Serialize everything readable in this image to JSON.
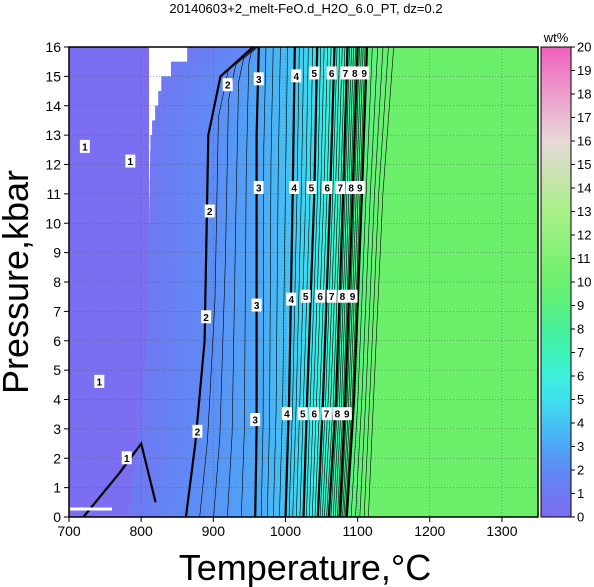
{
  "chart_data": {
    "type": "heatmap",
    "title": "20140603+2_melt-FeO.d_H2O_6.0_PT, dz=0.2",
    "xlabel": "Temperature,°C",
    "ylabel": "Pressure,kbar",
    "xlim": [
      700,
      1350
    ],
    "ylim": [
      0,
      16
    ],
    "x_ticks": [
      "700",
      "800",
      "900",
      "1000",
      "1100",
      "1200",
      "1300"
    ],
    "y_ticks": [
      "0",
      "1",
      "2",
      "3",
      "4",
      "5",
      "6",
      "7",
      "8",
      "9",
      "10",
      "11",
      "12",
      "13",
      "14",
      "15",
      "16"
    ],
    "grid": true,
    "colorbar": {
      "unit": "wt%",
      "range": [
        0,
        20
      ],
      "ticks": [
        "0",
        "1",
        "2",
        "3",
        "4",
        "5",
        "6",
        "7",
        "8",
        "9",
        "10",
        "11",
        "12",
        "13",
        "14",
        "15",
        "16",
        "17",
        "18",
        "19",
        "20"
      ],
      "position": "right"
    },
    "contour_interval": 0.2,
    "labeled_contours": [
      {
        "value": 1,
        "label": "1",
        "points": [
          [
            720,
            0
          ],
          [
            770,
            1.5
          ],
          [
            800,
            2.5
          ],
          [
            820,
            0.5
          ]
        ],
        "labels_at": [
          [
            780,
            2
          ],
          [
            742,
            4.6
          ],
          [
            722,
            12.6
          ],
          [
            785,
            12.1
          ]
        ]
      },
      {
        "value": 2,
        "label": "2",
        "points": [
          [
            862,
            0
          ],
          [
            875,
            2.5
          ],
          [
            888,
            6
          ],
          [
            893,
            13
          ],
          [
            910,
            15
          ],
          [
            955,
            16
          ]
        ],
        "labels_at": [
          [
            878,
            2.9
          ],
          [
            890,
            6.8
          ],
          [
            895,
            10.4
          ],
          [
            920,
            14.7
          ]
        ]
      },
      {
        "value": 3,
        "label": "3",
        "points": [
          [
            958,
            0
          ],
          [
            960,
            3
          ],
          [
            960,
            13
          ],
          [
            963,
            16
          ]
        ],
        "labels_at": [
          [
            958,
            3.3
          ],
          [
            960,
            7.2
          ],
          [
            963,
            11.2
          ],
          [
            963,
            14.9
          ]
        ]
      },
      {
        "value": 4,
        "label": "4",
        "points": [
          [
            1000,
            0
          ],
          [
            1005,
            4
          ],
          [
            1010,
            11
          ],
          [
            1013,
            16
          ]
        ],
        "labels_at": [
          [
            1002,
            3.5
          ],
          [
            1008,
            7.4
          ],
          [
            1012,
            11.2
          ],
          [
            1015,
            15.0
          ]
        ]
      },
      {
        "value": 5,
        "label": "5",
        "points": [
          [
            1025,
            0
          ],
          [
            1030,
            4
          ],
          [
            1040,
            11
          ],
          [
            1044,
            16
          ]
        ],
        "labels_at": [
          [
            1024,
            3.5
          ],
          [
            1028,
            7.5
          ],
          [
            1036,
            11.2
          ],
          [
            1040,
            15.1
          ]
        ]
      },
      {
        "value": 6,
        "label": "6",
        "points": [
          [
            1045,
            0
          ],
          [
            1052,
            4
          ],
          [
            1062,
            11
          ],
          [
            1068,
            16
          ]
        ],
        "labels_at": [
          [
            1040,
            3.5
          ],
          [
            1048,
            7.5
          ],
          [
            1058,
            11.2
          ],
          [
            1064,
            15.1
          ]
        ]
      },
      {
        "value": 7,
        "label": "7",
        "points": [
          [
            1060,
            0
          ],
          [
            1070,
            4
          ],
          [
            1080,
            11
          ],
          [
            1086,
            16
          ]
        ],
        "labels_at": [
          [
            1057,
            3.5
          ],
          [
            1064,
            7.5
          ],
          [
            1076,
            11.2
          ],
          [
            1083,
            15.1
          ]
        ]
      },
      {
        "value": 8,
        "label": "8",
        "points": [
          [
            1075,
            0
          ],
          [
            1083,
            4
          ],
          [
            1093,
            11
          ],
          [
            1100,
            16
          ]
        ],
        "labels_at": [
          [
            1072,
            3.5
          ],
          [
            1079,
            7.5
          ],
          [
            1091,
            11.2
          ],
          [
            1096,
            15.1
          ]
        ]
      },
      {
        "value": 9,
        "label": "9",
        "points": [
          [
            1085,
            0
          ],
          [
            1095,
            4
          ],
          [
            1106,
            11
          ],
          [
            1113,
            16
          ]
        ],
        "labels_at": [
          [
            1085,
            3.5
          ],
          [
            1093,
            7.5
          ],
          [
            1103,
            11.2
          ],
          [
            1109,
            15.1
          ]
        ]
      }
    ],
    "saturation_boundary": {
      "value": 10,
      "points": [
        [
          1115,
          0
        ],
        [
          1122,
          4
        ],
        [
          1135,
          11
        ],
        [
          1150,
          16
        ]
      ]
    },
    "color_stops": [
      {
        "value": 0,
        "color": "#7b6ef0"
      },
      {
        "value": 1,
        "color": "#6f78f2"
      },
      {
        "value": 2,
        "color": "#5f8af4"
      },
      {
        "value": 3,
        "color": "#4fa6f6"
      },
      {
        "value": 4,
        "color": "#44c4f4"
      },
      {
        "value": 5,
        "color": "#3ee0ec"
      },
      {
        "value": 6,
        "color": "#3ef0dc"
      },
      {
        "value": 7,
        "color": "#3ef2b8"
      },
      {
        "value": 8,
        "color": "#46f098"
      },
      {
        "value": 9,
        "color": "#5cf080"
      },
      {
        "value": 10,
        "color": "#6cf06c"
      },
      {
        "value": 13,
        "color": "#a8f088"
      },
      {
        "value": 16,
        "color": "#e8d8d8"
      },
      {
        "value": 20,
        "color": "#f060c0"
      }
    ]
  }
}
